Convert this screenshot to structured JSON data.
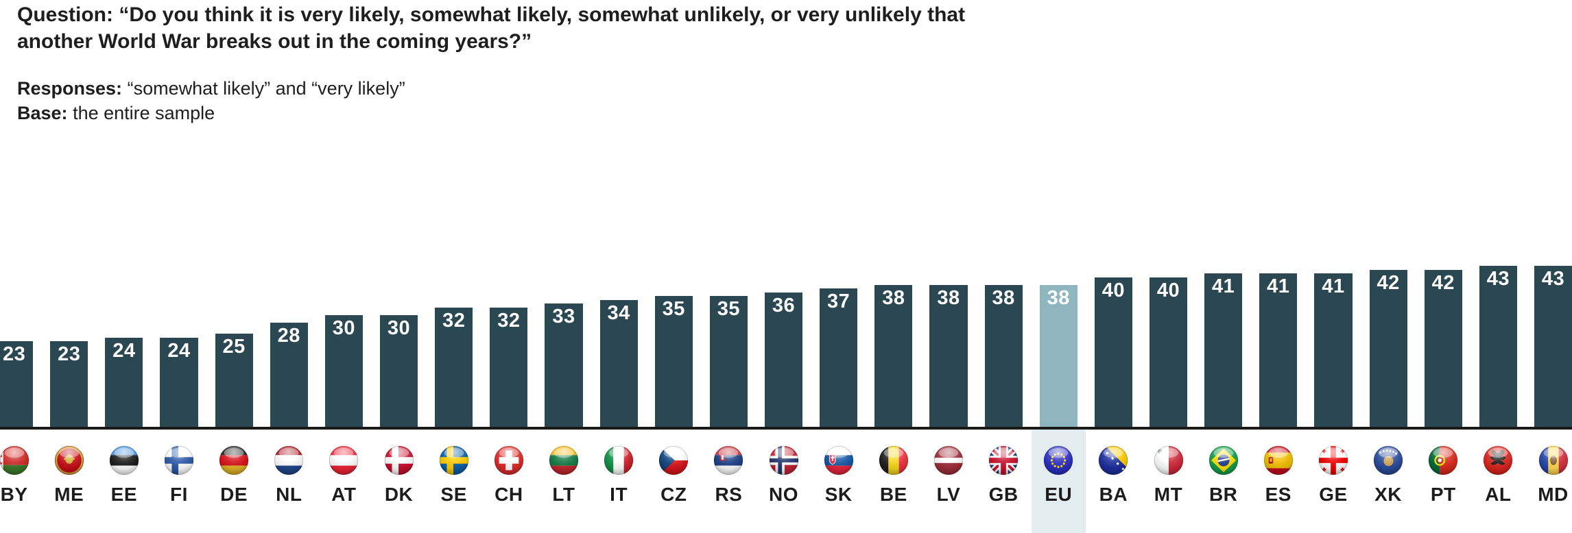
{
  "header": {
    "question_label": "Question:",
    "question_text": "“Do you think it is very likely, somewhat likely, somewhat unlikely, or very unlikely that another World War breaks out in the coming years?”",
    "responses_label": "Responses:",
    "responses_text": "“somewhat likely” and “very likely”",
    "base_label": "Base:",
    "base_text": "the entire sample"
  },
  "colors": {
    "bar": "#2b4752",
    "bar_highlighted": "#8fb5bf",
    "highlight_column_bg": "#e3ecee",
    "baseline": "#1b1b19",
    "value_label": "#ffffff",
    "text": "#1e1e1e"
  },
  "chart_data": {
    "type": "bar",
    "title": "",
    "xlabel": "",
    "ylabel": "",
    "ylim": [
      0,
      45
    ],
    "gridlines": false,
    "data_labels": "inside-top",
    "legend": "none",
    "highlighted_category": "EU",
    "categories": [
      "BY",
      "ME",
      "EE",
      "FI",
      "DE",
      "NL",
      "AT",
      "DK",
      "SE",
      "CH",
      "LT",
      "IT",
      "CZ",
      "RS",
      "NO",
      "SK",
      "BE",
      "LV",
      "GB",
      "EU",
      "BA",
      "MT",
      "BR",
      "ES",
      "GE",
      "XK",
      "PT",
      "AL",
      "MD"
    ],
    "values": [
      23,
      23,
      24,
      24,
      25,
      28,
      30,
      30,
      32,
      32,
      33,
      34,
      35,
      35,
      36,
      37,
      38,
      38,
      38,
      38,
      40,
      40,
      41,
      41,
      41,
      42,
      42,
      43,
      43
    ],
    "flag_icons": [
      "by-flag-icon",
      "me-flag-icon",
      "ee-flag-icon",
      "fi-flag-icon",
      "de-flag-icon",
      "nl-flag-icon",
      "at-flag-icon",
      "dk-flag-icon",
      "se-flag-icon",
      "ch-flag-icon",
      "lt-flag-icon",
      "it-flag-icon",
      "cz-flag-icon",
      "rs-flag-icon",
      "no-flag-icon",
      "sk-flag-icon",
      "be-flag-icon",
      "lv-flag-icon",
      "gb-flag-icon",
      "eu-flag-icon",
      "ba-flag-icon",
      "mt-flag-icon",
      "br-flag-icon",
      "es-flag-icon",
      "ge-flag-icon",
      "xk-flag-icon",
      "pt-flag-icon",
      "al-flag-icon",
      "md-flag-icon"
    ]
  }
}
